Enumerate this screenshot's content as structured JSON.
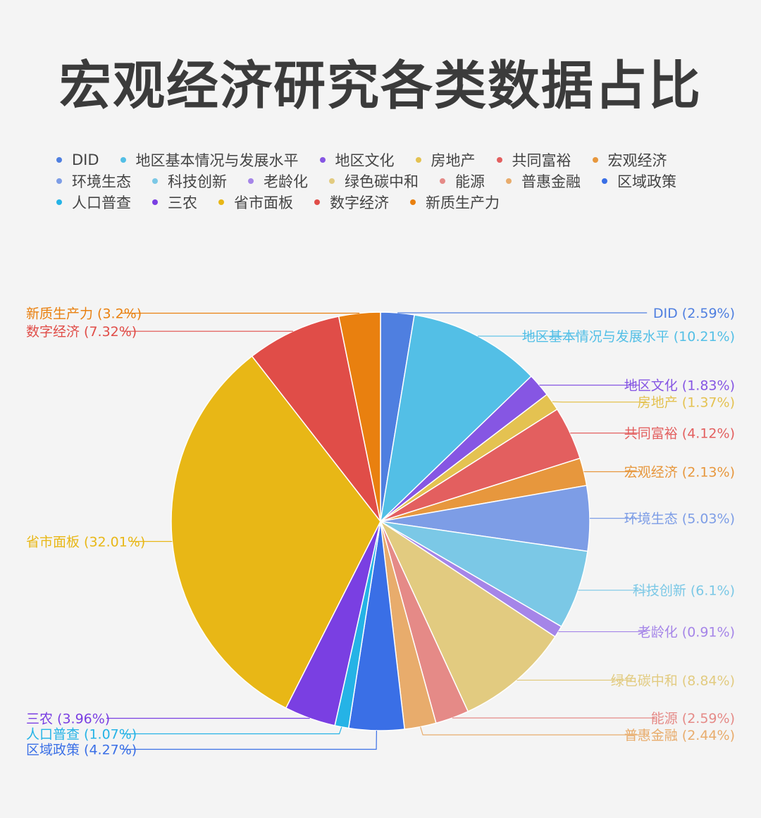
{
  "title": "宏观经济研究各类数据占比",
  "chart_data": {
    "type": "pie",
    "title": "宏观经济研究各类数据占比",
    "legend_position": "top",
    "slices": [
      {
        "name": "DID",
        "value": 2.59,
        "label": "DID (2.59%)",
        "color": "#4f7fe0"
      },
      {
        "name": "地区基本情况与发展水平",
        "value": 10.21,
        "label": "地区基本情况与发展水平 (10.21%)",
        "color": "#53bfe6"
      },
      {
        "name": "地区文化",
        "value": 1.83,
        "label": "地区文化 (1.83%)",
        "color": "#8656e3"
      },
      {
        "name": "房地产",
        "value": 1.37,
        "label": "房地产 (1.37%)",
        "color": "#e4c251"
      },
      {
        "name": "共同富裕",
        "value": 4.12,
        "label": "共同富裕 (4.12%)",
        "color": "#e35f5f"
      },
      {
        "name": "宏观经济",
        "value": 2.13,
        "label": "宏观经济 (2.13%)",
        "color": "#e7973d"
      },
      {
        "name": "环境生态",
        "value": 5.03,
        "label": "环境生态 (5.03%)",
        "color": "#7d9de6"
      },
      {
        "name": "科技创新",
        "value": 6.1,
        "label": "科技创新 (6.1%)",
        "color": "#7bc8e6"
      },
      {
        "name": "老龄化",
        "value": 0.91,
        "label": "老龄化 (0.91%)",
        "color": "#a585e8"
      },
      {
        "name": "绿色碳中和",
        "value": 8.84,
        "label": "绿色碳中和 (8.84%)",
        "color": "#e2cb80"
      },
      {
        "name": "能源",
        "value": 2.59,
        "label": "能源 (2.59%)",
        "color": "#e58a87"
      },
      {
        "name": "普惠金融",
        "value": 2.44,
        "label": "普惠金融 (2.44%)",
        "color": "#e8ac6c"
      },
      {
        "name": "区域政策",
        "value": 4.27,
        "label": "区域政策 (4.27%)",
        "color": "#3a6fe6"
      },
      {
        "name": "人口普查",
        "value": 1.07,
        "label": "人口普查 (1.07%)",
        "color": "#25b3e6"
      },
      {
        "name": "三农",
        "value": 3.96,
        "label": "三农 (3.96%)",
        "color": "#7a3fe2"
      },
      {
        "name": "省市面板",
        "value": 32.01,
        "label": "省市面板 (32.01%)",
        "color": "#e8b716"
      },
      {
        "name": "数字经济",
        "value": 7.32,
        "label": "数字经济 (7.32%)",
        "color": "#e04d48"
      },
      {
        "name": "新质生产力",
        "value": 3.2,
        "label": "新质生产力 (3.2%)",
        "color": "#e9800f"
      }
    ]
  }
}
